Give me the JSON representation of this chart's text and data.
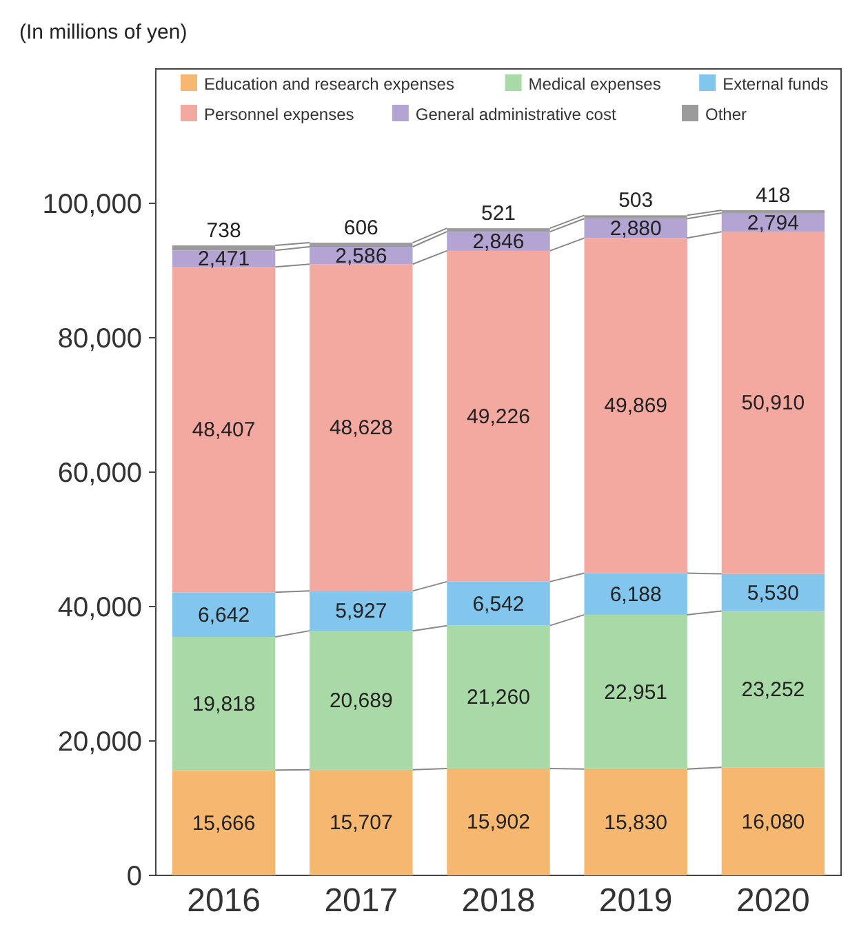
{
  "chart_data": {
    "type": "bar",
    "stacked": true,
    "ylabel": "(In millions of yen)",
    "categories": [
      "2016",
      "2017",
      "2018",
      "2019",
      "2020"
    ],
    "series": [
      {
        "name": "Education and research expenses",
        "color": "#f6b870",
        "values": [
          15666,
          15707,
          15902,
          15830,
          16080
        ],
        "value_labels": [
          "15,666",
          "15,707",
          "15,902",
          "15,830",
          "16,080"
        ]
      },
      {
        "name": "Medical expenses",
        "color": "#a9d9a6",
        "values": [
          19818,
          20689,
          21260,
          22951,
          23252
        ],
        "value_labels": [
          "19,818",
          "20,689",
          "21,260",
          "22,951",
          "23,252"
        ]
      },
      {
        "name": "External funds",
        "color": "#82c6ee",
        "values": [
          6642,
          5927,
          6542,
          6188,
          5530
        ],
        "value_labels": [
          "6,642",
          "5,927",
          "6,542",
          "6,188",
          "5,530"
        ]
      },
      {
        "name": "Personnel expenses",
        "color": "#f3a8a0",
        "values": [
          48407,
          48628,
          49226,
          49869,
          50910
        ],
        "value_labels": [
          "48,407",
          "48,628",
          "49,226",
          "49,869",
          "50,910"
        ]
      },
      {
        "name": "General administrative cost",
        "color": "#b4a4d4",
        "values": [
          2471,
          2586,
          2846,
          2880,
          2794
        ],
        "value_labels": [
          "2,471",
          "2,586",
          "2,846",
          "2,880",
          "2,794"
        ]
      },
      {
        "name": "Other",
        "color": "#9b9b9b",
        "values": [
          738,
          606,
          521,
          503,
          418
        ],
        "value_labels": [
          "738",
          "606",
          "521",
          "503",
          "418"
        ]
      }
    ],
    "ylim": [
      0,
      120000
    ],
    "yticks": [
      {
        "value": 0,
        "label": "0"
      },
      {
        "value": 20000,
        "label": "20,000"
      },
      {
        "value": 40000,
        "label": "40,000"
      },
      {
        "value": 60000,
        "label": "60,000"
      },
      {
        "value": 80000,
        "label": "80,000"
      },
      {
        "value": 100000,
        "label": "100,000"
      }
    ],
    "legend": "top",
    "grid": false
  }
}
